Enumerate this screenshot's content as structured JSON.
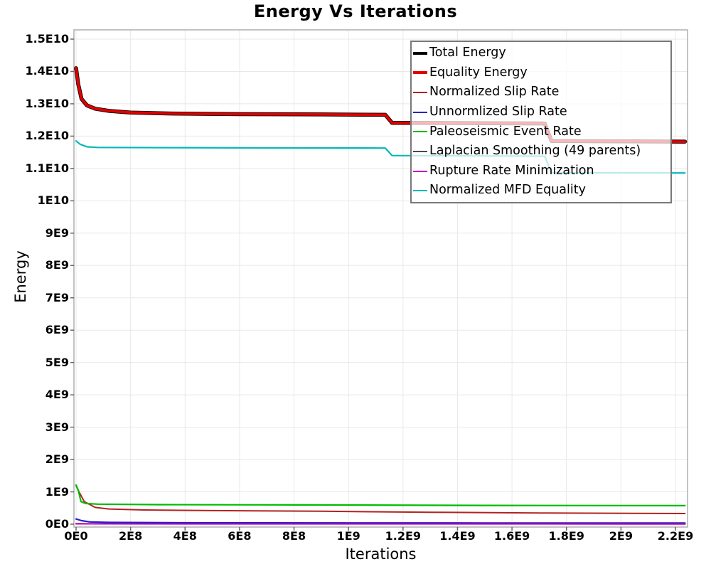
{
  "window": {
    "background": "#ffffff"
  },
  "chart_data": {
    "type": "line",
    "title": "Energy Vs Iterations",
    "xlabel": "Iterations",
    "ylabel": "Energy",
    "xlim": [
      0,
      2250000000.0
    ],
    "ylim": [
      0,
      15300000000.0
    ],
    "grid": true,
    "legend_position": "top-right",
    "legend_border_color": "#787878",
    "grid_color": "#e8e8e8",
    "plot_border_color": "#b4b4b4",
    "x_ticks": [
      {
        "value": 0,
        "label": "0E0"
      },
      {
        "value": 200000000.0,
        "label": "2E8"
      },
      {
        "value": 400000000.0,
        "label": "4E8"
      },
      {
        "value": 600000000.0,
        "label": "6E8"
      },
      {
        "value": 800000000.0,
        "label": "8E8"
      },
      {
        "value": 1000000000.0,
        "label": "1E9"
      },
      {
        "value": 1200000000.0,
        "label": "1.2E9"
      },
      {
        "value": 1400000000.0,
        "label": "1.4E9"
      },
      {
        "value": 1600000000.0,
        "label": "1.6E9"
      },
      {
        "value": 1800000000.0,
        "label": "1.8E9"
      },
      {
        "value": 2000000000.0,
        "label": "2E9"
      },
      {
        "value": 2200000000.0,
        "label": "2.2E9"
      }
    ],
    "y_ticks": [
      {
        "value": 0,
        "label": "0E0"
      },
      {
        "value": 1000000000.0,
        "label": "1E9"
      },
      {
        "value": 2000000000.0,
        "label": "2E9"
      },
      {
        "value": 3000000000.0,
        "label": "3E9"
      },
      {
        "value": 4000000000.0,
        "label": "4E9"
      },
      {
        "value": 5000000000.0,
        "label": "5E9"
      },
      {
        "value": 6000000000.0,
        "label": "6E9"
      },
      {
        "value": 7000000000.0,
        "label": "7E9"
      },
      {
        "value": 8000000000.0,
        "label": "8E9"
      },
      {
        "value": 9000000000.0,
        "label": "9E9"
      },
      {
        "value": 10000000000.0,
        "label": "1E10"
      },
      {
        "value": 11000000000.0,
        "label": "1.1E10"
      },
      {
        "value": 12000000000.0,
        "label": "1.2E10"
      },
      {
        "value": 13000000000.0,
        "label": "1.3E10"
      },
      {
        "value": 14000000000.0,
        "label": "1.4E10"
      },
      {
        "value": 15000000000.0,
        "label": "1.5E10"
      }
    ],
    "series": [
      {
        "name": "Total Energy",
        "color": "#000000",
        "width": 5.5,
        "points": [
          [
            0,
            14100000000.0
          ],
          [
            8000000.0,
            13600000000.0
          ],
          [
            20000000.0,
            13150000000.0
          ],
          [
            40000000.0,
            12950000000.0
          ],
          [
            70000000.0,
            12850000000.0
          ],
          [
            120000000.0,
            12780000000.0
          ],
          [
            200000000.0,
            12730000000.0
          ],
          [
            350000000.0,
            12700000000.0
          ],
          [
            600000000.0,
            12680000000.0
          ],
          [
            900000000.0,
            12670000000.0
          ],
          [
            1135000000.0,
            12660000000.0
          ],
          [
            1160000000.0,
            12410000000.0
          ],
          [
            1500000000.0,
            12400000000.0
          ],
          [
            1720000000.0,
            12390000000.0
          ],
          [
            1745000000.0,
            11850000000.0
          ],
          [
            2000000000.0,
            11840000000.0
          ],
          [
            2235000000.0,
            11830000000.0
          ]
        ]
      },
      {
        "name": "Equality Energy",
        "color": "#e00000",
        "width": 3.8,
        "points": [
          [
            0,
            14100000000.0
          ],
          [
            8000000.0,
            13600000000.0
          ],
          [
            20000000.0,
            13150000000.0
          ],
          [
            40000000.0,
            12950000000.0
          ],
          [
            70000000.0,
            12850000000.0
          ],
          [
            120000000.0,
            12780000000.0
          ],
          [
            200000000.0,
            12730000000.0
          ],
          [
            350000000.0,
            12700000000.0
          ],
          [
            600000000.0,
            12680000000.0
          ],
          [
            900000000.0,
            12670000000.0
          ],
          [
            1135000000.0,
            12660000000.0
          ],
          [
            1160000000.0,
            12410000000.0
          ],
          [
            1500000000.0,
            12400000000.0
          ],
          [
            1720000000.0,
            12390000000.0
          ],
          [
            1745000000.0,
            11850000000.0
          ],
          [
            2000000000.0,
            11840000000.0
          ],
          [
            2235000000.0,
            11830000000.0
          ]
        ]
      },
      {
        "name": "Normalized Slip Rate",
        "color": "#b22222",
        "width": 2,
        "points": [
          [
            0,
            1190000000.0
          ],
          [
            12000000.0,
            980000000.0
          ],
          [
            30000000.0,
            700000000.0
          ],
          [
            70000000.0,
            520000000.0
          ],
          [
            120000000.0,
            470000000.0
          ],
          [
            250000000.0,
            440000000.0
          ],
          [
            500000000.0,
            420000000.0
          ],
          [
            900000000.0,
            400000000.0
          ],
          [
            1300000000.0,
            370000000.0
          ],
          [
            1700000000.0,
            345000000.0
          ],
          [
            2235000000.0,
            330000000.0
          ]
        ]
      },
      {
        "name": "Unnormlized Slip Rate",
        "color": "#2323c8",
        "width": 2.2,
        "points": [
          [
            0,
            160000000.0
          ],
          [
            20000000.0,
            110000000.0
          ],
          [
            50000000.0,
            70000000.0
          ],
          [
            120000000.0,
            55000000.0
          ],
          [
            400000000.0,
            45000000.0
          ],
          [
            1000000000.0,
            40000000.0
          ],
          [
            1500000000.0,
            38000000.0
          ],
          [
            2235000000.0,
            35000000.0
          ]
        ]
      },
      {
        "name": "Paleoseismic Event Rate",
        "color": "#00bb00",
        "width": 2.2,
        "points": [
          [
            0,
            1210000000.0
          ],
          [
            8000000.0,
            1050000000.0
          ],
          [
            18000000.0,
            700000000.0
          ],
          [
            35000000.0,
            640000000.0
          ],
          [
            80000000.0,
            620000000.0
          ],
          [
            300000000.0,
            605000000.0
          ],
          [
            800000000.0,
            595000000.0
          ],
          [
            1500000000.0,
            580000000.0
          ],
          [
            2235000000.0,
            575000000.0
          ]
        ]
      },
      {
        "name": "Laplacian Smoothing (49 parents)",
        "color": "#4a4a4a",
        "width": 2,
        "points": [
          [
            0,
            15000000.0
          ],
          [
            500000000.0,
            12000000.0
          ],
          [
            2235000000.0,
            10000000.0
          ]
        ]
      },
      {
        "name": "Rupture Rate Minimization",
        "color": "#bf00bf",
        "width": 2,
        "points": [
          [
            0,
            12000000.0
          ],
          [
            500000000.0,
            8000000.0
          ],
          [
            2235000000.0,
            6000000.0
          ]
        ]
      },
      {
        "name": "Normalized MFD Equality",
        "color": "#00b8b8",
        "width": 2.2,
        "points": [
          [
            0,
            11850000000.0
          ],
          [
            15000000.0,
            11750000000.0
          ],
          [
            40000000.0,
            11670000000.0
          ],
          [
            80000000.0,
            11650000000.0
          ],
          [
            500000000.0,
            11640000000.0
          ],
          [
            1135000000.0,
            11630000000.0
          ],
          [
            1160000000.0,
            11400000000.0
          ],
          [
            1720000000.0,
            11380000000.0
          ],
          [
            1745000000.0,
            10870000000.0
          ],
          [
            2235000000.0,
            10860000000.0
          ]
        ]
      }
    ]
  }
}
